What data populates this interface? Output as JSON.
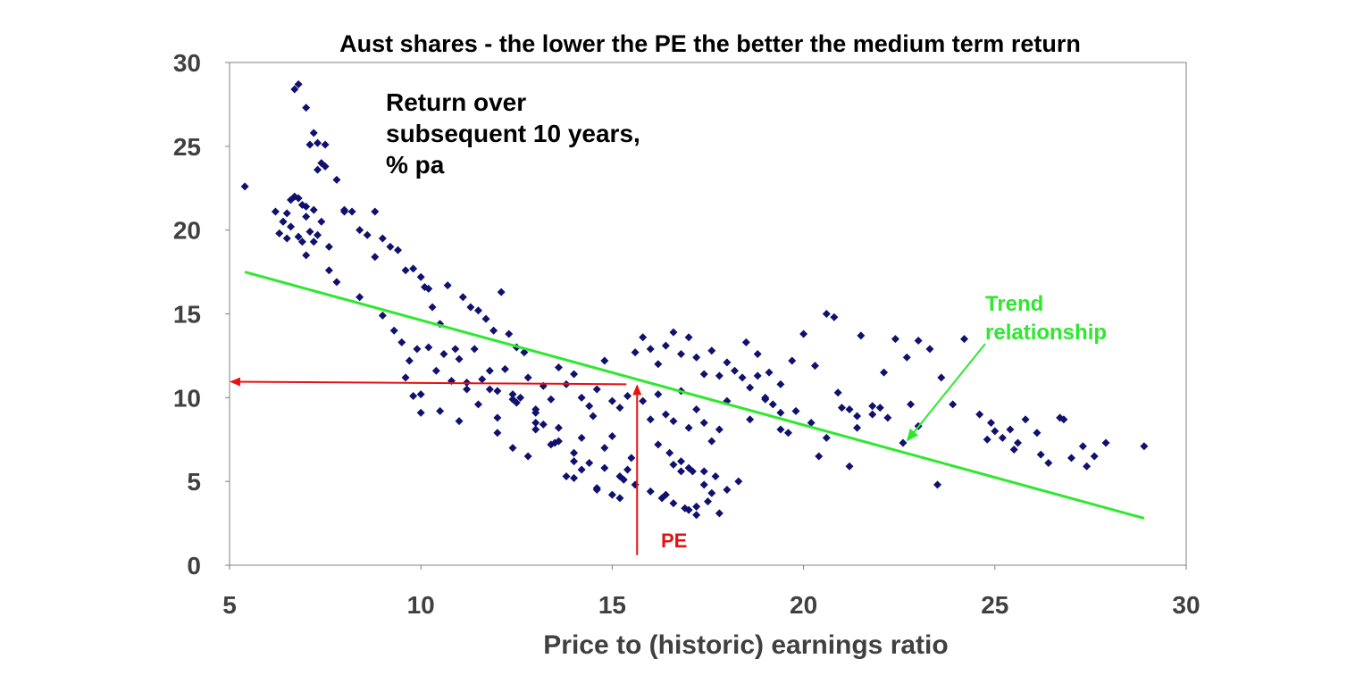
{
  "chart_data": {
    "type": "scatter",
    "title": "Aust shares - the lower the PE the better the medium term return",
    "xlabel": "Price to (historic) earnings ratio",
    "ylabel_lines": [
      "Return over",
      "subsequent 10 years,",
      "% pa"
    ],
    "xlim": [
      5,
      30
    ],
    "ylim": [
      0,
      30
    ],
    "x_ticks": [
      "5",
      "10",
      "15",
      "20",
      "25",
      "30"
    ],
    "y_ticks": [
      "0",
      "5",
      "10",
      "15",
      "20",
      "25",
      "30"
    ],
    "grid": false,
    "marker_color": "#10106E",
    "trend_color": "#2EE82E",
    "arrow_color": "#E81010",
    "trend_line": {
      "x": [
        5.4,
        28.9
      ],
      "y": [
        17.5,
        2.8
      ]
    },
    "trend_label_lines": [
      "Trend",
      "relationship"
    ],
    "pe_label": "PE",
    "pe_marker": {
      "x": 15.65,
      "y_return": 10.8
    },
    "series": [
      {
        "x": [
          5.4,
          6.3,
          6.4,
          6.5,
          6.5,
          6.6,
          6.7,
          6.7,
          6.8,
          6.8,
          6.9,
          6.9,
          7.0,
          7.0,
          7.0,
          7.1,
          7.1,
          7.2,
          7.2,
          7.3,
          7.3,
          7.3,
          7.4,
          7.4,
          7.5,
          7.5,
          7.6,
          7.8,
          8.0,
          8.2,
          8.4,
          8.6,
          8.8,
          9.0,
          9.2,
          9.4,
          9.6,
          9.8,
          10.0,
          10.2,
          6.2,
          6.4,
          6.6,
          6.8,
          7.0,
          7.2,
          7.6,
          7.8,
          8.0,
          8.4,
          8.8,
          9.0,
          9.3,
          9.5,
          9.7,
          9.9,
          10.1,
          10.3,
          10.5,
          10.7,
          10.9,
          11.1,
          11.3,
          11.5,
          11.7,
          11.9,
          12.1,
          12.3,
          12.5,
          12.7,
          9.6,
          9.8,
          10.0,
          10.2,
          10.4,
          10.6,
          10.8,
          11.0,
          11.2,
          11.4,
          11.6,
          11.8,
          12.0,
          12.2,
          12.4,
          12.6,
          12.8,
          13.0,
          13.2,
          13.4,
          13.6,
          13.8,
          14.0,
          14.2,
          14.4,
          14.6,
          14.8,
          15.0,
          15.2,
          15.4,
          10.0,
          10.5,
          11.0,
          11.5,
          12.0,
          12.5,
          13.0,
          13.5,
          14.0,
          14.5,
          15.0,
          15.5,
          11.2,
          11.8,
          12.4,
          13.0,
          13.6,
          14.2,
          14.8,
          15.4,
          12.0,
          12.4,
          12.8,
          13.2,
          13.6,
          14.0,
          14.4,
          14.8,
          15.2,
          15.6,
          13.0,
          13.4,
          13.8,
          14.2,
          14.6,
          15.0,
          15.3,
          14.0,
          14.6,
          15.2,
          15.6,
          15.8,
          16.0,
          16.2,
          16.4,
          16.6,
          16.8,
          17.0,
          17.2,
          17.4,
          17.6,
          17.8,
          18.0,
          18.2,
          18.4,
          18.6,
          18.8,
          19.0,
          19.2,
          19.4,
          15.8,
          16.0,
          16.2,
          16.4,
          16.6,
          16.8,
          17.0,
          17.2,
          17.4,
          17.6,
          17.8,
          18.0,
          16.2,
          16.5,
          16.8,
          17.1,
          17.4,
          17.7,
          18.0,
          18.3,
          16.0,
          16.3,
          16.6,
          16.9,
          17.2,
          17.5,
          17.8,
          16.4,
          16.8,
          17.2,
          17.6,
          16.6,
          17.0,
          17.4,
          17.0,
          18.5,
          18.8,
          19.1,
          19.4,
          19.7,
          20.0,
          20.3,
          20.6,
          20.9,
          21.2,
          21.5,
          21.8,
          22.1,
          22.4,
          22.7,
          23.0,
          23.3,
          23.6,
          23.9,
          24.2,
          18.6,
          19.0,
          19.4,
          19.8,
          20.2,
          20.6,
          21.0,
          21.4,
          21.8,
          22.2,
          22.6,
          23.0,
          19.6,
          20.4,
          21.2,
          22.0,
          22.8,
          20.8,
          21.4,
          23.5,
          24.6,
          24.9,
          25.2,
          25.5,
          25.8,
          26.1,
          26.4,
          26.7,
          27.0,
          27.3,
          27.6,
          27.9,
          28.9,
          25.0,
          25.6,
          26.2,
          26.8,
          27.4,
          24.8,
          25.4
        ],
        "y": [
          22.6,
          19.8,
          20.5,
          21.0,
          19.5,
          20.2,
          22.0,
          28.4,
          28.7,
          21.9,
          19.3,
          21.5,
          27.3,
          20.8,
          18.5,
          25.1,
          19.9,
          25.8,
          21.2,
          23.6,
          25.2,
          19.7,
          24.0,
          20.5,
          25.1,
          23.8,
          17.6,
          23.0,
          21.2,
          21.1,
          16.0,
          19.7,
          21.1,
          19.5,
          19.0,
          18.8,
          17.6,
          17.7,
          17.2,
          16.5,
          21.1,
          20.5,
          21.8,
          19.6,
          21.4,
          19.3,
          19.0,
          16.9,
          21.1,
          20.0,
          18.4,
          14.9,
          14.0,
          13.3,
          12.2,
          12.9,
          16.6,
          15.4,
          14.4,
          16.7,
          12.9,
          16.0,
          15.4,
          15.2,
          14.7,
          14.0,
          16.3,
          13.8,
          13.0,
          12.7,
          11.2,
          10.1,
          9.1,
          13.0,
          11.6,
          12.6,
          11.0,
          12.3,
          10.5,
          12.9,
          11.1,
          11.6,
          10.4,
          11.7,
          10.2,
          10.0,
          11.2,
          9.1,
          10.7,
          9.9,
          11.8,
          10.8,
          11.4,
          10.0,
          9.5,
          10.5,
          12.2,
          9.8,
          9.4,
          10.1,
          10.2,
          9.2,
          8.6,
          9.6,
          8.8,
          9.7,
          8.1,
          7.3,
          6.2,
          8.9,
          7.7,
          6.4,
          10.9,
          10.5,
          9.9,
          9.3,
          8.2,
          7.6,
          7.0,
          5.7,
          7.9,
          7.0,
          6.5,
          8.4,
          7.4,
          6.7,
          6.1,
          5.8,
          5.3,
          4.8,
          8.5,
          7.2,
          5.3,
          5.7,
          4.6,
          4.2,
          5.1,
          5.2,
          4.5,
          4.0,
          12.7,
          13.6,
          12.9,
          12.0,
          13.1,
          13.9,
          12.6,
          13.6,
          12.4,
          11.4,
          12.8,
          11.3,
          12.1,
          11.6,
          11.2,
          10.6,
          11.3,
          10.0,
          9.6,
          9.1,
          9.8,
          8.7,
          10.2,
          9.0,
          8.6,
          10.4,
          8.2,
          9.3,
          8.5,
          7.4,
          8.1,
          9.8,
          7.2,
          6.7,
          6.2,
          5.6,
          4.8,
          5.3,
          4.5,
          5.0,
          4.4,
          4.0,
          3.7,
          3.4,
          3.5,
          3.8,
          3.1,
          4.2,
          5.6,
          3.0,
          4.3,
          6.0,
          5.8,
          5.6,
          3.3,
          13.3,
          12.6,
          11.5,
          10.8,
          12.2,
          13.8,
          11.9,
          15.0,
          10.3,
          9.3,
          13.7,
          9.5,
          11.5,
          13.5,
          12.4,
          13.4,
          12.9,
          11.2,
          9.6,
          13.5,
          8.7,
          9.9,
          8.1,
          9.2,
          8.5,
          7.6,
          9.4,
          8.2,
          9.0,
          8.8,
          7.3,
          8.3,
          7.9,
          6.5,
          5.9,
          9.4,
          9.6,
          14.8,
          8.9,
          4.8,
          9.0,
          8.5,
          7.6,
          6.9,
          8.7,
          7.9,
          6.1,
          8.8,
          6.4,
          7.1,
          6.5,
          7.3,
          7.1,
          8.0,
          7.3,
          6.6,
          8.7,
          5.9,
          7.5,
          8.1
        ]
      }
    ]
  }
}
